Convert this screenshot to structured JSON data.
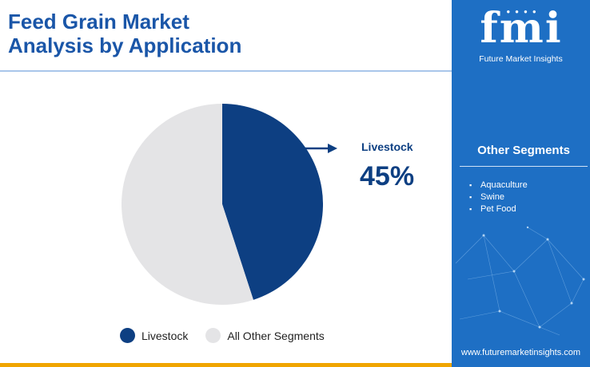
{
  "header": {
    "title_line1": "Feed Grain Market",
    "title_line2": "Analysis by Application"
  },
  "chart_data": {
    "type": "pie",
    "categories": [
      "Livestock",
      "All Other Segments"
    ],
    "values": [
      45,
      55
    ],
    "colors": [
      "#0d3f82",
      "#e4e4e6"
    ],
    "callout": {
      "label": "Livestock",
      "value_text": "45%"
    },
    "legend": {
      "placement": "bottom",
      "entries": [
        "Livestock",
        "All Other Segments"
      ]
    }
  },
  "sidebar": {
    "logo_text": "fmi",
    "logo_subtitle": "Future Market Insights",
    "other_segments_heading": "Other Segments",
    "other_segments": [
      "Aquaculture",
      "Swine",
      "Pet Food"
    ],
    "website": "www.futuremarketinsights.com"
  },
  "colors": {
    "title": "#1a56a8",
    "panel": "#1e6fc4",
    "accent_bar": "#f0a500"
  }
}
